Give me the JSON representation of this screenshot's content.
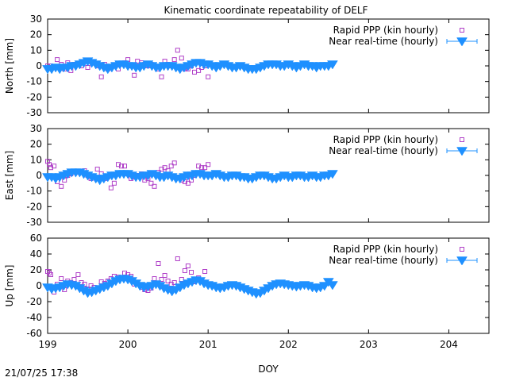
{
  "title": "Kinematic coordinate repeatability of DELF",
  "timestamp": "21/07/25 17:38",
  "xlabel": "DOY",
  "colors": {
    "rapid": "#b040c8",
    "nrt": "#1e90ff"
  },
  "legend": {
    "rapid": "Rapid PPP (kin hourly)",
    "nrt": "Near real-time (hourly)"
  },
  "chart_data": [
    {
      "type": "scatter",
      "ylabel": "North [mm]",
      "xlim": [
        199,
        204.5
      ],
      "ylim": [
        -30,
        30
      ],
      "xticks": [
        199,
        200,
        201,
        202,
        203,
        204
      ],
      "yticks": [
        -30,
        -20,
        -10,
        0,
        10,
        20,
        30
      ],
      "series": [
        {
          "name": "Rapid PPP (kin hourly)",
          "marker": "square",
          "x": [
            199.0,
            199.04,
            199.08,
            199.12,
            199.17,
            199.21,
            199.25,
            199.29,
            199.33,
            199.42,
            199.5,
            199.58,
            199.62,
            199.67,
            199.71,
            199.75,
            199.79,
            199.83,
            199.88,
            199.92,
            199.96,
            200.0,
            200.04,
            200.08,
            200.12,
            200.17,
            200.21,
            200.25,
            200.29,
            200.33,
            200.38,
            200.42,
            200.46,
            200.5,
            200.54,
            200.58,
            200.62,
            200.67,
            200.71,
            200.75,
            200.79,
            200.83,
            200.88,
            200.92,
            200.96,
            201.0
          ],
          "y": [
            0,
            0,
            -1,
            4,
            1,
            -2,
            2,
            -3,
            1,
            0,
            -1,
            2,
            0,
            -7,
            1,
            -2,
            -1,
            0,
            -2,
            1,
            2,
            4,
            0,
            -6,
            3,
            2,
            1,
            0,
            1,
            0,
            -2,
            -7,
            3,
            1,
            0,
            4,
            10,
            5,
            -2,
            -2,
            0,
            -4,
            -3,
            -1,
            0,
            -7
          ]
        },
        {
          "name": "Near real-time (hourly)",
          "marker": "triangle-down",
          "x": [
            199.0,
            199.05,
            199.1,
            199.15,
            199.2,
            199.25,
            199.3,
            199.35,
            199.4,
            199.45,
            199.5,
            199.55,
            199.6,
            199.65,
            199.7,
            199.75,
            199.8,
            199.85,
            199.9,
            199.95,
            200.0,
            200.05,
            200.1,
            200.15,
            200.2,
            200.25,
            200.3,
            200.35,
            200.4,
            200.45,
            200.5,
            200.55,
            200.6,
            200.65,
            200.7,
            200.75,
            200.8,
            200.85,
            200.9,
            200.95,
            201.0,
            201.05,
            201.1,
            201.15,
            201.2,
            201.25,
            201.3,
            201.35,
            201.4,
            201.45,
            201.5,
            201.55,
            201.6,
            201.65,
            201.7,
            201.75,
            201.8,
            201.85,
            201.9,
            201.95,
            202.0,
            202.05,
            202.1,
            202.15,
            202.2,
            202.25,
            202.3,
            202.35,
            202.4,
            202.45,
            202.5,
            202.55
          ],
          "y": [
            -2,
            -2,
            -1,
            -2,
            -1,
            -1,
            0,
            0,
            1,
            2,
            3,
            2,
            1,
            0,
            -1,
            -2,
            -1,
            0,
            1,
            1,
            0,
            0,
            -1,
            -1,
            0,
            1,
            0,
            -1,
            -1,
            0,
            0,
            0,
            -1,
            -2,
            -1,
            0,
            1,
            2,
            2,
            1,
            1,
            0,
            -1,
            0,
            1,
            0,
            -1,
            -1,
            0,
            -1,
            -2,
            -2,
            -2,
            -1,
            0,
            1,
            1,
            1,
            0,
            0,
            1,
            0,
            -1,
            0,
            1,
            0,
            0,
            -1,
            0,
            0,
            0,
            1
          ]
        }
      ]
    },
    {
      "type": "scatter",
      "ylabel": "East [mm]",
      "xlim": [
        199,
        204.5
      ],
      "ylim": [
        -30,
        30
      ],
      "xticks": [
        199,
        200,
        201,
        202,
        203,
        204
      ],
      "yticks": [
        -30,
        -20,
        -10,
        0,
        10,
        20,
        30
      ],
      "series": [
        {
          "name": "Rapid PPP (kin hourly)",
          "marker": "square",
          "x": [
            199.0,
            199.02,
            199.04,
            199.08,
            199.12,
            199.17,
            199.21,
            199.25,
            199.29,
            199.33,
            199.38,
            199.42,
            199.46,
            199.5,
            199.54,
            199.58,
            199.62,
            199.67,
            199.71,
            199.75,
            199.79,
            199.83,
            199.88,
            199.92,
            199.96,
            200.0,
            200.04,
            200.08,
            200.12,
            200.17,
            200.21,
            200.25,
            200.29,
            200.33,
            200.38,
            200.42,
            200.46,
            200.5,
            200.54,
            200.58,
            200.62,
            200.67,
            200.71,
            200.75,
            200.79,
            200.83,
            200.88,
            200.92,
            200.96,
            201.0
          ],
          "y": [
            9,
            7,
            5,
            6,
            -4,
            -7,
            -3,
            0,
            1,
            2,
            2,
            2,
            3,
            0,
            -2,
            -1,
            4,
            1,
            -2,
            -1,
            -8,
            -5,
            7,
            6,
            6,
            1,
            -2,
            -1,
            0,
            1,
            -3,
            -2,
            -5,
            -7,
            2,
            4,
            5,
            3,
            6,
            8,
            -1,
            -3,
            -4,
            -5,
            -3,
            0,
            6,
            5,
            5,
            7
          ]
        },
        {
          "name": "Near real-time (hourly)",
          "marker": "triangle-down",
          "x": [
            199.0,
            199.05,
            199.1,
            199.15,
            199.2,
            199.25,
            199.3,
            199.35,
            199.4,
            199.45,
            199.5,
            199.55,
            199.6,
            199.65,
            199.7,
            199.75,
            199.8,
            199.85,
            199.9,
            199.95,
            200.0,
            200.05,
            200.1,
            200.15,
            200.2,
            200.25,
            200.3,
            200.35,
            200.4,
            200.45,
            200.5,
            200.55,
            200.6,
            200.65,
            200.7,
            200.75,
            200.8,
            200.85,
            200.9,
            200.95,
            201.0,
            201.05,
            201.1,
            201.15,
            201.2,
            201.25,
            201.3,
            201.35,
            201.4,
            201.45,
            201.5,
            201.55,
            201.6,
            201.65,
            201.7,
            201.75,
            201.8,
            201.85,
            201.9,
            201.95,
            202.0,
            202.05,
            202.1,
            202.15,
            202.2,
            202.25,
            202.3,
            202.35,
            202.4,
            202.45,
            202.5,
            202.55
          ],
          "y": [
            -1,
            -1,
            -2,
            -1,
            0,
            1,
            2,
            2,
            2,
            1,
            0,
            -1,
            -2,
            -3,
            -2,
            -1,
            0,
            0,
            1,
            1,
            1,
            0,
            -1,
            -1,
            0,
            0,
            1,
            0,
            -1,
            -1,
            0,
            -1,
            -2,
            -2,
            -1,
            0,
            0,
            1,
            1,
            0,
            0,
            0,
            1,
            0,
            -1,
            -1,
            0,
            0,
            -1,
            -1,
            -2,
            -2,
            -1,
            0,
            0,
            -1,
            -2,
            -2,
            -1,
            0,
            -1,
            -1,
            0,
            0,
            -1,
            -1,
            0,
            -1,
            -1,
            0,
            0,
            1
          ]
        }
      ]
    },
    {
      "type": "scatter",
      "ylabel": "Up [mm]",
      "xlim": [
        199,
        204.5
      ],
      "ylim": [
        -60,
        60
      ],
      "xticks": [
        199,
        200,
        201,
        202,
        203,
        204
      ],
      "yticks": [
        -60,
        -40,
        -20,
        0,
        20,
        40,
        60
      ],
      "series": [
        {
          "name": "Rapid PPP (kin hourly)",
          "marker": "square",
          "x": [
            199.0,
            199.02,
            199.04,
            199.08,
            199.12,
            199.17,
            199.21,
            199.25,
            199.29,
            199.33,
            199.38,
            199.42,
            199.46,
            199.5,
            199.54,
            199.58,
            199.62,
            199.67,
            199.71,
            199.75,
            199.79,
            199.83,
            199.88,
            199.92,
            199.96,
            200.0,
            200.04,
            200.08,
            200.12,
            200.17,
            200.21,
            200.25,
            200.29,
            200.33,
            200.38,
            200.42,
            200.46,
            200.5,
            200.54,
            200.58,
            200.62,
            200.67,
            200.71,
            200.75,
            200.79,
            200.83,
            200.88,
            200.92,
            200.96,
            201.0
          ],
          "y": [
            18,
            16,
            14,
            -8,
            2,
            9,
            -5,
            6,
            4,
            8,
            14,
            4,
            2,
            -4,
            0,
            -2,
            -4,
            5,
            3,
            6,
            9,
            12,
            11,
            10,
            16,
            14,
            12,
            2,
            4,
            -2,
            -5,
            -6,
            -3,
            9,
            28,
            8,
            13,
            6,
            2,
            4,
            34,
            8,
            19,
            25,
            17,
            5,
            10,
            6,
            18,
            2
          ]
        },
        {
          "name": "Near real-time (hourly)",
          "marker": "triangle-down",
          "x": [
            199.0,
            199.05,
            199.1,
            199.15,
            199.2,
            199.25,
            199.3,
            199.35,
            199.4,
            199.45,
            199.5,
            199.55,
            199.6,
            199.65,
            199.7,
            199.75,
            199.8,
            199.85,
            199.9,
            199.95,
            200.0,
            200.05,
            200.1,
            200.15,
            200.2,
            200.25,
            200.3,
            200.35,
            200.4,
            200.45,
            200.5,
            200.55,
            200.6,
            200.65,
            200.7,
            200.75,
            200.8,
            200.85,
            200.9,
            200.95,
            201.0,
            201.05,
            201.1,
            201.15,
            201.2,
            201.25,
            201.3,
            201.35,
            201.4,
            201.45,
            201.5,
            201.55,
            201.6,
            201.65,
            201.7,
            201.75,
            201.8,
            201.85,
            201.9,
            201.95,
            202.0,
            202.05,
            202.1,
            202.15,
            202.2,
            202.25,
            202.3,
            202.35,
            202.4,
            202.45,
            202.5,
            202.55
          ],
          "y": [
            -2,
            -4,
            -3,
            -2,
            0,
            2,
            1,
            0,
            -3,
            -6,
            -9,
            -8,
            -6,
            -4,
            -2,
            0,
            3,
            6,
            8,
            9,
            8,
            6,
            3,
            0,
            -2,
            -1,
            0,
            2,
            0,
            -3,
            -5,
            -7,
            -5,
            -2,
            1,
            3,
            5,
            7,
            6,
            3,
            1,
            0,
            -2,
            -3,
            -2,
            0,
            1,
            0,
            -2,
            -4,
            -6,
            -8,
            -10,
            -9,
            -6,
            -3,
            0,
            2,
            3,
            2,
            1,
            0,
            -1,
            0,
            1,
            0,
            -2,
            -3,
            -2,
            0,
            5,
            1
          ]
        }
      ]
    }
  ]
}
